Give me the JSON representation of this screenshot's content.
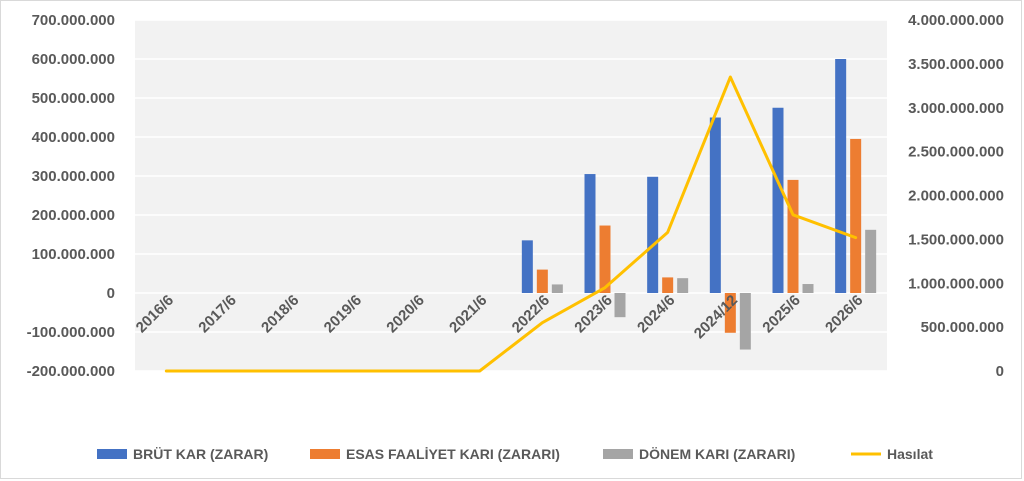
{
  "chart_data": {
    "type": "bar",
    "combo": "bar+line (secondary axis)",
    "title": "",
    "categories": [
      "2016/6",
      "2017/6",
      "2018/6",
      "2019/6",
      "2020/6",
      "2021/6",
      "2022/6",
      "2023/6",
      "2024/6",
      "2024/12",
      "2025/6",
      "2026/6"
    ],
    "series": [
      {
        "name": "BRÜT KAR (ZARAR)",
        "type": "bar",
        "axis": "left",
        "color": "#4472C4",
        "values": [
          null,
          null,
          null,
          null,
          null,
          null,
          135000000,
          305000000,
          298000000,
          450000000,
          475000000,
          600000000
        ]
      },
      {
        "name": "ESAS FAALİYET KARI (ZARARI)",
        "type": "bar",
        "axis": "left",
        "color": "#ED7D31",
        "values": [
          null,
          null,
          null,
          null,
          null,
          null,
          60000000,
          173000000,
          40000000,
          -102000000,
          290000000,
          395000000
        ]
      },
      {
        "name": "DÖNEM KARI (ZARARI)",
        "type": "bar",
        "axis": "left",
        "color": "#A5A5A5",
        "values": [
          null,
          null,
          null,
          null,
          null,
          null,
          22000000,
          -62000000,
          38000000,
          -145000000,
          23000000,
          162000000
        ]
      },
      {
        "name": "Hasılat",
        "type": "line",
        "axis": "right",
        "color": "#FFC000",
        "values": [
          0,
          0,
          0,
          0,
          0,
          0,
          550000000,
          950000000,
          1580000000,
          3350000000,
          1780000000,
          1520000000
        ]
      }
    ],
    "left_axis": {
      "ylim": [
        -200000000,
        700000000
      ],
      "ticks": [
        700000000,
        600000000,
        500000000,
        400000000,
        300000000,
        200000000,
        100000000,
        0,
        -100000000,
        -200000000
      ],
      "tick_labels": [
        "700.000.000",
        "600.000.000",
        "500.000.000",
        "400.000.000",
        "300.000.000",
        "200.000.000",
        "100.000.000",
        "0",
        "-100.000.000",
        "-200.000.000"
      ]
    },
    "right_axis": {
      "ylim": [
        0,
        4000000000
      ],
      "ticks": [
        4000000000,
        3500000000,
        3000000000,
        2500000000,
        2000000000,
        1500000000,
        1000000000,
        500000000,
        0
      ],
      "tick_labels": [
        "4.000.000.000",
        "3.500.000.000",
        "3.000.000.000",
        "2.500.000.000",
        "2.000.000.000",
        "1.500.000.000",
        "1.000.000.000",
        "500.000.000",
        "0"
      ]
    },
    "grid": true,
    "plot_background": "#F2F2F2",
    "legend_position": "bottom"
  }
}
